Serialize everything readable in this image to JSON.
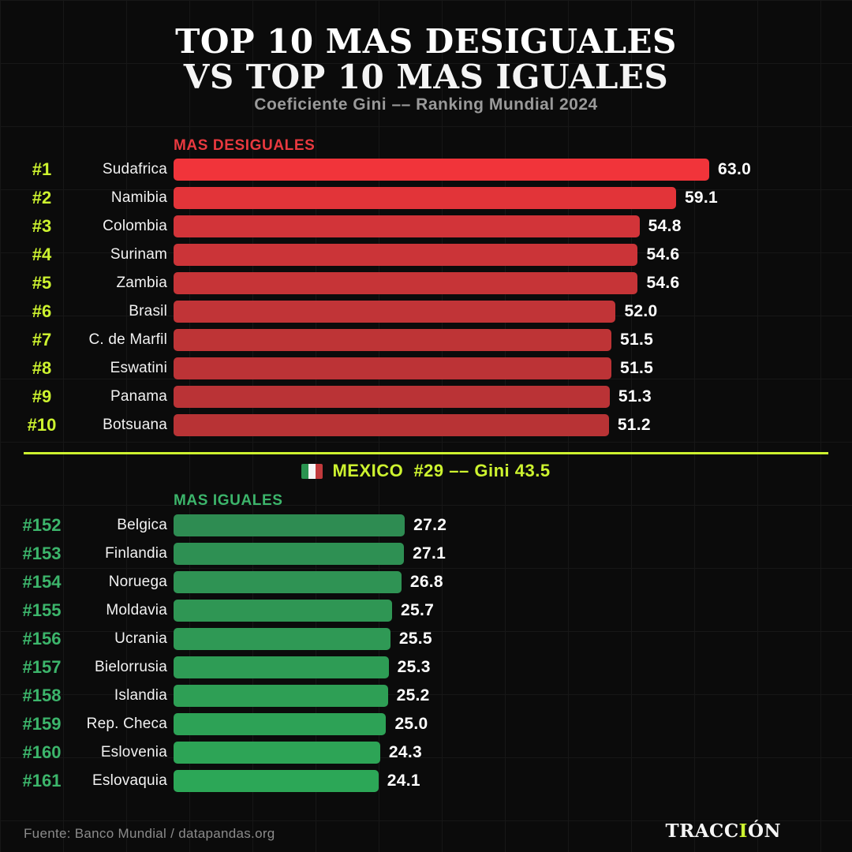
{
  "header": {
    "title_line1": "TOP 10 MAS DESIGUALES",
    "title_line2": "VS TOP 10 MAS IGUALES",
    "subtitle": "Coeficiente Gini –– Ranking Mundial 2024"
  },
  "colors": {
    "accent_chartreuse": "#cdf32f",
    "red_label": "#e9393f",
    "green_label": "#3cb56b",
    "background": "#0b0b0b",
    "grid_line": "#171717",
    "value_text": "#ffffff",
    "country_text": "#f2f2f2",
    "subtitle_text": "#9a9a9a",
    "source_text": "#8b8b8b"
  },
  "chart_data": [
    {
      "type": "bar",
      "orientation": "horizontal",
      "title": "MAS DESIGUALES",
      "title_color": "#e9393f",
      "rank_color": "#cdf32f",
      "ranks": [
        "#1",
        "#2",
        "#3",
        "#4",
        "#5",
        "#6",
        "#7",
        "#8",
        "#9",
        "#10"
      ],
      "categories": [
        "Sudafrica",
        "Namibia",
        "Colombia",
        "Surinam",
        "Zambia",
        "Brasil",
        "C. de Marfil",
        "Eswatini",
        "Panama",
        "Botsuana"
      ],
      "values": [
        63.0,
        59.1,
        54.8,
        54.6,
        54.6,
        52.0,
        51.5,
        51.5,
        51.3,
        51.2
      ],
      "bar_colors": [
        "#f1343a",
        "#e23439",
        "#d23439",
        "#cb3438",
        "#c63437",
        "#c13437",
        "#be3436",
        "#bc3336",
        "#ba3336",
        "#b83335"
      ],
      "xlim": [
        0,
        63
      ],
      "value_decimals": 1,
      "grid": true,
      "legend": "none"
    },
    {
      "type": "bar",
      "orientation": "horizontal",
      "title": "MAS IGUALES",
      "title_color": "#3cb56b",
      "rank_color": "#3cb56b",
      "ranks": [
        "#152",
        "#153",
        "#154",
        "#155",
        "#156",
        "#157",
        "#158",
        "#159",
        "#160",
        "#161"
      ],
      "categories": [
        "Belgica",
        "Finlandia",
        "Noruega",
        "Moldavia",
        "Ucrania",
        "Bielorrusia",
        "Islandia",
        "Rep. Checa",
        "Eslovenia",
        "Eslovaquia"
      ],
      "values": [
        27.2,
        27.1,
        26.8,
        25.7,
        25.5,
        25.3,
        25.2,
        25.0,
        24.3,
        24.1
      ],
      "bar_colors": [
        "#2e8c52",
        "#2e9053",
        "#2f9354",
        "#2f9654",
        "#2f9955",
        "#2e9c55",
        "#2e9f55",
        "#2da256",
        "#2da456",
        "#2ca757"
      ],
      "xlim": [
        0,
        63
      ],
      "value_decimals": 1,
      "grid": true,
      "legend": "none"
    }
  ],
  "divider_note": {
    "text": "MEXICO  #29 –– Gini 43.5",
    "flag_colors": {
      "left": "#2a9350",
      "middle": "#f5f5f5",
      "right": "#c13a3c"
    }
  },
  "footer": {
    "source": "Fuente: Banco Mundial / datapandas.org",
    "brand_prefix": "TRACC",
    "brand_highlight": "I",
    "brand_suffix": "ÓN"
  }
}
